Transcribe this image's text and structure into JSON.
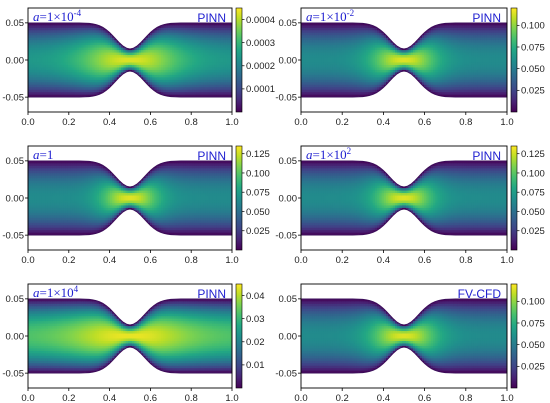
{
  "chart_data": [
    {
      "type": "heatmap",
      "alpha_symbol": "a",
      "alpha_value": "=1×10",
      "alpha_exp": "-4",
      "method": "PINN",
      "xlim": [
        0,
        1
      ],
      "ylim": [
        -0.07,
        0.07
      ],
      "x_ticks": [
        "0.0",
        "0.2",
        "0.4",
        "0.6",
        "0.8",
        "1.0"
      ],
      "y_ticks": [
        "0.05",
        "0.00",
        "-0.05"
      ],
      "colorbar": {
        "min": 0,
        "max": 0.00045,
        "ticks": [
          "0.0004",
          "0.0003",
          "0.0002",
          "0.0001"
        ],
        "tick_values": [
          0.0004,
          0.0003,
          0.0002,
          0.0001
        ]
      },
      "field": {
        "peak": 0.00043,
        "core_width": 0.25,
        "axial_floor": 0.55
      }
    },
    {
      "type": "heatmap",
      "alpha_symbol": "a",
      "alpha_value": "=1×10",
      "alpha_exp": "-2",
      "method": "PINN",
      "xlim": [
        0,
        1
      ],
      "ylim": [
        -0.07,
        0.07
      ],
      "x_ticks": [
        "0.0",
        "0.2",
        "0.4",
        "0.6",
        "0.8",
        "1.0"
      ],
      "y_ticks": [
        "0.05",
        "0.00",
        "-0.05"
      ],
      "colorbar": {
        "min": 0,
        "max": 0.12,
        "ticks": [
          "0.100",
          "0.075",
          "0.050",
          "0.025"
        ],
        "tick_values": [
          0.1,
          0.075,
          0.05,
          0.025
        ]
      },
      "field": {
        "peak": 0.115,
        "core_width": 0.16,
        "axial_floor": 0.5
      }
    },
    {
      "type": "heatmap",
      "alpha_symbol": "a",
      "alpha_value": "=1",
      "alpha_exp": "",
      "method": "PINN",
      "xlim": [
        0,
        1
      ],
      "ylim": [
        -0.07,
        0.07
      ],
      "x_ticks": [
        "0.0",
        "0.2",
        "0.4",
        "0.6",
        "0.8",
        "1.0"
      ],
      "y_ticks": [
        "0.05",
        "0.00",
        "-0.05"
      ],
      "colorbar": {
        "min": 0,
        "max": 0.135,
        "ticks": [
          "0.125",
          "0.100",
          "0.075",
          "0.050",
          "0.025"
        ],
        "tick_values": [
          0.125,
          0.1,
          0.075,
          0.05,
          0.025
        ]
      },
      "field": {
        "peak": 0.13,
        "core_width": 0.14,
        "axial_floor": 0.5
      }
    },
    {
      "type": "heatmap",
      "alpha_symbol": "a",
      "alpha_value": "=1×10",
      "alpha_exp": "2",
      "method": "PINN",
      "xlim": [
        0,
        1
      ],
      "ylim": [
        -0.07,
        0.07
      ],
      "x_ticks": [
        "0.0",
        "0.2",
        "0.4",
        "0.6",
        "0.8",
        "1.0"
      ],
      "y_ticks": [
        "0.05",
        "0.00",
        "-0.05"
      ],
      "colorbar": {
        "min": 0,
        "max": 0.135,
        "ticks": [
          "0.125",
          "0.100",
          "0.075",
          "0.050",
          "0.025"
        ],
        "tick_values": [
          0.125,
          0.1,
          0.075,
          0.05,
          0.025
        ]
      },
      "field": {
        "peak": 0.13,
        "core_width": 0.14,
        "axial_floor": 0.5
      }
    },
    {
      "type": "heatmap",
      "alpha_symbol": "a",
      "alpha_value": "=1×10",
      "alpha_exp": "4",
      "method": "PINN",
      "xlim": [
        0,
        1
      ],
      "ylim": [
        -0.07,
        0.07
      ],
      "x_ticks": [
        "0.0",
        "0.2",
        "0.4",
        "0.6",
        "0.8",
        "1.0"
      ],
      "y_ticks": [
        "0.05",
        "0.00",
        "-0.05"
      ],
      "colorbar": {
        "min": 0,
        "max": 0.045,
        "ticks": [
          "0.04",
          "0.03",
          "0.02",
          "0.01"
        ],
        "tick_values": [
          0.04,
          0.03,
          0.02,
          0.01
        ]
      },
      "field": {
        "peak": 0.044,
        "core_width": 0.3,
        "axial_floor": 0.72
      }
    },
    {
      "type": "heatmap",
      "alpha_symbol": "",
      "alpha_value": "",
      "alpha_exp": "",
      "method": "FV-CFD",
      "xlim": [
        0,
        1
      ],
      "ylim": [
        -0.07,
        0.07
      ],
      "x_ticks": [
        "0.0",
        "0.2",
        "0.4",
        "0.6",
        "0.8",
        "1.0"
      ],
      "y_ticks": [
        "0.05",
        "0.00",
        "-0.05"
      ],
      "colorbar": {
        "min": 0,
        "max": 0.12,
        "ticks": [
          "0.100",
          "0.075",
          "0.050",
          "0.025"
        ],
        "tick_values": [
          0.1,
          0.075,
          0.05,
          0.025
        ]
      },
      "field": {
        "peak": 0.115,
        "core_width": 0.16,
        "axial_floor": 0.5
      }
    }
  ]
}
